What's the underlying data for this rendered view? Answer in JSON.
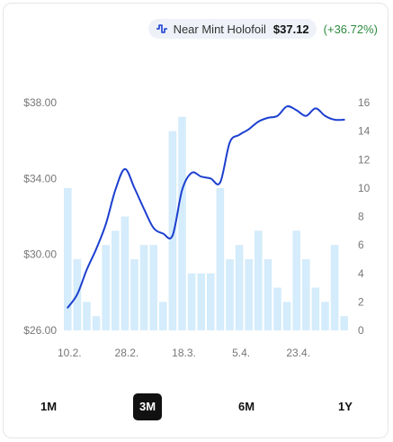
{
  "legend": {
    "icon": "price-line-icon",
    "series_name": "Near Mint Holofoil",
    "price": "$37.12",
    "change": "(+36.72%)",
    "line_color": "#1c3fd0",
    "change_color": "#2e8b3e"
  },
  "ranges": [
    {
      "label": "1M",
      "active": false
    },
    {
      "label": "3M",
      "active": true
    },
    {
      "label": "6M",
      "active": false
    },
    {
      "label": "1Y",
      "active": false
    }
  ],
  "chart_data": {
    "type": "line+bar",
    "grid": false,
    "legend_placement": "top-right",
    "x_ticks": [
      "10.2.",
      "28.2.",
      "18.3.",
      "5.4.",
      "23.4."
    ],
    "left_axis": {
      "ticks": [
        "$26.00",
        "$30.00",
        "$34.00",
        "$38.00"
      ],
      "range": [
        26,
        38
      ]
    },
    "right_axis": {
      "ticks": [
        "0",
        "2",
        "4",
        "6",
        "8",
        "10",
        "12",
        "14",
        "16"
      ],
      "range": [
        0,
        16
      ]
    },
    "bar_color": "#d4ecfb",
    "volume": [
      10,
      5,
      2,
      1,
      6,
      7,
      8,
      5,
      6,
      6,
      2,
      14,
      15,
      4,
      4,
      4,
      10,
      5,
      6,
      5,
      7,
      5,
      3,
      2,
      7,
      5,
      3,
      2,
      6,
      1
    ],
    "price": [
      27.2,
      27.9,
      29.2,
      30.3,
      31.6,
      33.4,
      34.5,
      33.5,
      32.4,
      31.4,
      31.1,
      31.0,
      33.4,
      34.3,
      34.1,
      34.0,
      33.8,
      35.9,
      36.3,
      36.6,
      37.0,
      37.2,
      37.3,
      37.8,
      37.6,
      37.3,
      37.7,
      37.3,
      37.1,
      37.1
    ]
  }
}
